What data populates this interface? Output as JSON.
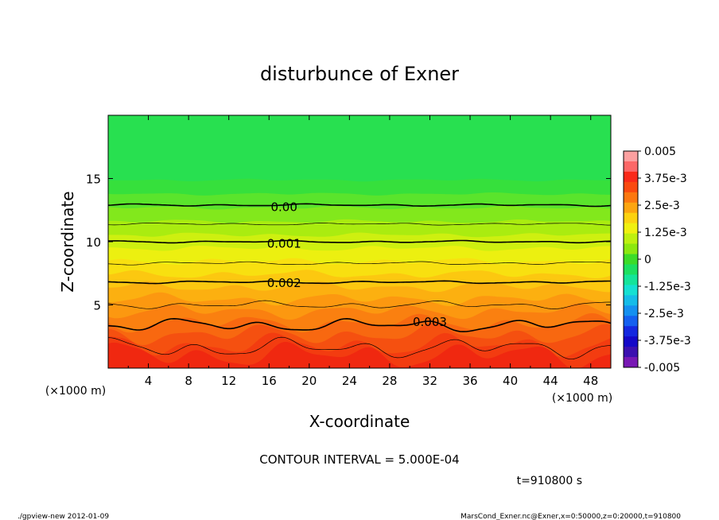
{
  "chart_data": {
    "type": "contour",
    "title": "disturbunce of Exner",
    "xlabel": "X-coordinate",
    "ylabel": "Z-coordinate",
    "x_unit_left": "(×1000 m)",
    "x_unit_right": "(×1000 m)",
    "xlim": [
      0,
      50
    ],
    "ylim": [
      0,
      20
    ],
    "x_ticks": [
      "4",
      "8",
      "12",
      "16",
      "20",
      "24",
      "28",
      "32",
      "36",
      "40",
      "44",
      "48"
    ],
    "x_tick_values": [
      4,
      8,
      12,
      16,
      20,
      24,
      28,
      32,
      36,
      40,
      44,
      48
    ],
    "y_ticks": [
      "5",
      "10",
      "15"
    ],
    "y_tick_values": [
      5,
      10,
      15
    ],
    "contour_labels": [
      {
        "text": "0.00",
        "x": 17.5,
        "z": 12.8
      },
      {
        "text": "0.001",
        "x": 17.5,
        "z": 9.9
      },
      {
        "text": "0.002",
        "x": 17.5,
        "z": 6.8
      },
      {
        "text": "0.003",
        "x": 32.0,
        "z": 3.7
      }
    ],
    "contour_interval_text": "CONTOUR INTERVAL = 5.000E-04",
    "time_text": "t=910800 s",
    "colorbar": {
      "labels": [
        "0.005",
        "3.75e-3",
        "2.5e-3",
        "1.25e-3",
        "0",
        "-1.25e-3",
        "-2.5e-3",
        "-3.75e-3",
        "-0.005"
      ],
      "colors_top_to_bottom": [
        "#fca0a0",
        "#fc6868",
        "#fa2a1a",
        "#fa4a10",
        "#fc7810",
        "#fca510",
        "#fcd210",
        "#f0f010",
        "#bef010",
        "#8ce810",
        "#3cdc28",
        "#1ce060",
        "#14e49a",
        "#14e0d2",
        "#14bce8",
        "#1490f0",
        "#1460f0",
        "#1428e0",
        "#1408c8",
        "#3c10b0",
        "#7818b4"
      ]
    },
    "level_colors": [
      "#f02810",
      "#f33c10",
      "#f55010",
      "#f86810",
      "#fa8010",
      "#fc9810",
      "#fcb010",
      "#fcc810",
      "#f8e010",
      "#ecf010",
      "#cef010",
      "#aaec10",
      "#82e81c",
      "#5ae42c",
      "#36e03c",
      "#28e050"
    ],
    "footer_left": "./gpview-new   2012-01-09",
    "footer_right": "MarsCond_Exner.nc@Exner,x=0:50000,z=0:20000,t=910800"
  }
}
